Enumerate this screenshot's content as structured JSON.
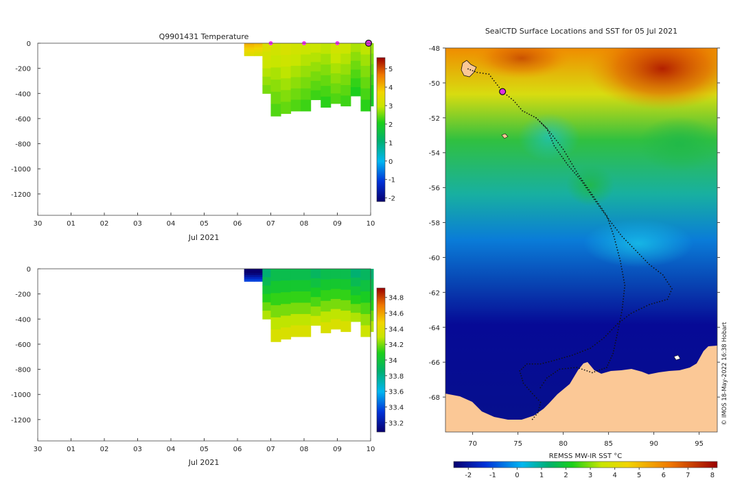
{
  "chart_data": [
    {
      "type": "heatmap",
      "title": "Q9901431  Temperature",
      "xlabel": "Jul 2021",
      "ylabel": "",
      "x_tick_labels": [
        "30",
        "01",
        "02",
        "03",
        "04",
        "05",
        "06",
        "07",
        "08",
        "09",
        "10"
      ],
      "x_range_days": [
        0,
        10
      ],
      "y_ticks": [
        0,
        -200,
        -400,
        -600,
        -800,
        -1000,
        -1200
      ],
      "y_range": [
        -1370,
        0
      ],
      "colorbar": {
        "min": -2.2,
        "max": 5.6,
        "ticks": [
          5,
          4,
          3,
          2,
          1,
          0,
          -1,
          -2
        ]
      },
      "surface_markers_days": [
        7.0,
        8.0,
        9.0
      ],
      "latest_marker_day": 10.0,
      "profiles": [
        {
          "day": 6.2,
          "depth": -100,
          "value": 3.6
        },
        {
          "day": 6.5,
          "depth": -100,
          "value": 3.5
        },
        {
          "day": 6.75,
          "depth": -400,
          "value": 2.8
        },
        {
          "day": 7.0,
          "depth": -580,
          "value": 2.6
        },
        {
          "day": 7.3,
          "depth": -560,
          "value": 2.7
        },
        {
          "day": 7.6,
          "depth": -540,
          "value": 2.6
        },
        {
          "day": 7.9,
          "depth": -540,
          "value": 2.5
        },
        {
          "day": 8.2,
          "depth": -450,
          "value": 2.5
        },
        {
          "day": 8.5,
          "depth": -510,
          "value": 2.4
        },
        {
          "day": 8.8,
          "depth": -480,
          "value": 2.6
        },
        {
          "day": 9.1,
          "depth": -500,
          "value": 2.5
        },
        {
          "day": 9.4,
          "depth": -420,
          "value": 2.3
        },
        {
          "day": 9.7,
          "depth": -540,
          "value": 2.4
        },
        {
          "day": 10.0,
          "depth": -500,
          "value": 2.2
        }
      ]
    },
    {
      "type": "heatmap",
      "title": "",
      "xlabel": "Jul 2021",
      "ylabel": "",
      "x_tick_labels": [
        "30",
        "01",
        "02",
        "03",
        "04",
        "05",
        "06",
        "07",
        "08",
        "09",
        "10"
      ],
      "x_range_days": [
        0,
        10
      ],
      "y_ticks": [
        0,
        -200,
        -400,
        -600,
        -800,
        -1000,
        -1200
      ],
      "y_range": [
        -1370,
        0
      ],
      "colorbar": {
        "min": 33.08,
        "max": 34.92,
        "ticks": [
          "34.8",
          "34.6",
          "34.4",
          "34.2",
          "34",
          "33.8",
          "33.6",
          "33.4",
          "33.2"
        ]
      },
      "profiles": [
        {
          "day": 6.2,
          "depth": -100,
          "value": 33.2
        },
        {
          "day": 6.5,
          "depth": -100,
          "value": 33.2
        },
        {
          "day": 6.75,
          "depth": -400,
          "value": 34.1
        },
        {
          "day": 7.0,
          "depth": -580,
          "value": 34.2
        },
        {
          "day": 7.3,
          "depth": -560,
          "value": 34.2
        },
        {
          "day": 7.6,
          "depth": -540,
          "value": 34.2
        },
        {
          "day": 7.9,
          "depth": -540,
          "value": 34.2
        },
        {
          "day": 8.2,
          "depth": -450,
          "value": 34.15
        },
        {
          "day": 8.5,
          "depth": -510,
          "value": 34.2
        },
        {
          "day": 8.8,
          "depth": -480,
          "value": 34.2
        },
        {
          "day": 9.1,
          "depth": -500,
          "value": 34.2
        },
        {
          "day": 9.4,
          "depth": -420,
          "value": 34.1
        },
        {
          "day": 9.7,
          "depth": -540,
          "value": 34.15
        },
        {
          "day": 10.0,
          "depth": -500,
          "value": 34.1
        }
      ]
    },
    {
      "type": "map",
      "title": "SealCTD Surface Locations and SST for 05 Jul 2021",
      "xlabel": "",
      "ylabel": "",
      "lon_range": [
        67,
        97
      ],
      "lat_range": [
        -70,
        -48
      ],
      "x_ticks": [
        70,
        75,
        80,
        85,
        90,
        95
      ],
      "y_ticks": [
        -48,
        -50,
        -52,
        -54,
        -56,
        -58,
        -60,
        -62,
        -64,
        -66,
        -68
      ],
      "colorbar": {
        "label": "REMSS MW-IR SST °C",
        "min": -2.6,
        "max": 8.2,
        "ticks": [
          -2,
          -1,
          0,
          1,
          2,
          3,
          4,
          5,
          6,
          7,
          8
        ]
      },
      "current_position": {
        "lon": 73.3,
        "lat": -50.5
      },
      "track": [
        [
          69.5,
          -49.2
        ],
        [
          70.5,
          -49.4
        ],
        [
          71.8,
          -49.5
        ],
        [
          73.3,
          -50.5
        ],
        [
          74.5,
          -51.0
        ],
        [
          75.5,
          -51.6
        ],
        [
          77.0,
          -52.0
        ],
        [
          78.2,
          -52.6
        ],
        [
          79.0,
          -53.6
        ],
        [
          80.5,
          -54.7
        ],
        [
          82.0,
          -55.6
        ],
        [
          83.6,
          -56.8
        ],
        [
          85.0,
          -57.8
        ],
        [
          86.5,
          -58.8
        ],
        [
          88.0,
          -59.6
        ],
        [
          89.5,
          -60.4
        ],
        [
          91.0,
          -61.0
        ],
        [
          92.0,
          -61.8
        ],
        [
          91.5,
          -62.4
        ],
        [
          89.5,
          -62.7
        ],
        [
          87.5,
          -63.2
        ],
        [
          86.0,
          -63.8
        ],
        [
          84.5,
          -64.6
        ],
        [
          83.0,
          -65.2
        ],
        [
          81.0,
          -65.6
        ],
        [
          79.0,
          -65.9
        ],
        [
          77.5,
          -66.1
        ],
        [
          76.0,
          -66.1
        ],
        [
          75.2,
          -66.5
        ],
        [
          75.6,
          -67.2
        ],
        [
          76.6,
          -67.8
        ],
        [
          77.5,
          -68.3
        ],
        [
          77.2,
          -68.9
        ],
        [
          76.4,
          -69.4
        ]
      ],
      "track2": [
        [
          77.0,
          -52.0
        ],
        [
          78.5,
          -52.8
        ],
        [
          80.0,
          -53.8
        ],
        [
          81.6,
          -55.2
        ],
        [
          83.2,
          -56.4
        ],
        [
          84.8,
          -57.6
        ],
        [
          85.6,
          -58.8
        ],
        [
          86.3,
          -60.2
        ],
        [
          86.8,
          -61.6
        ],
        [
          86.5,
          -63.0
        ],
        [
          86.0,
          -64.3
        ],
        [
          85.5,
          -65.5
        ],
        [
          84.8,
          -66.3
        ],
        [
          83.2,
          -66.6
        ],
        [
          81.5,
          -66.3
        ],
        [
          79.6,
          -66.4
        ],
        [
          78.2,
          -66.9
        ],
        [
          77.3,
          -67.6
        ]
      ],
      "credit": "© IMOS 18-May-2022 16:38 Hobart"
    }
  ]
}
